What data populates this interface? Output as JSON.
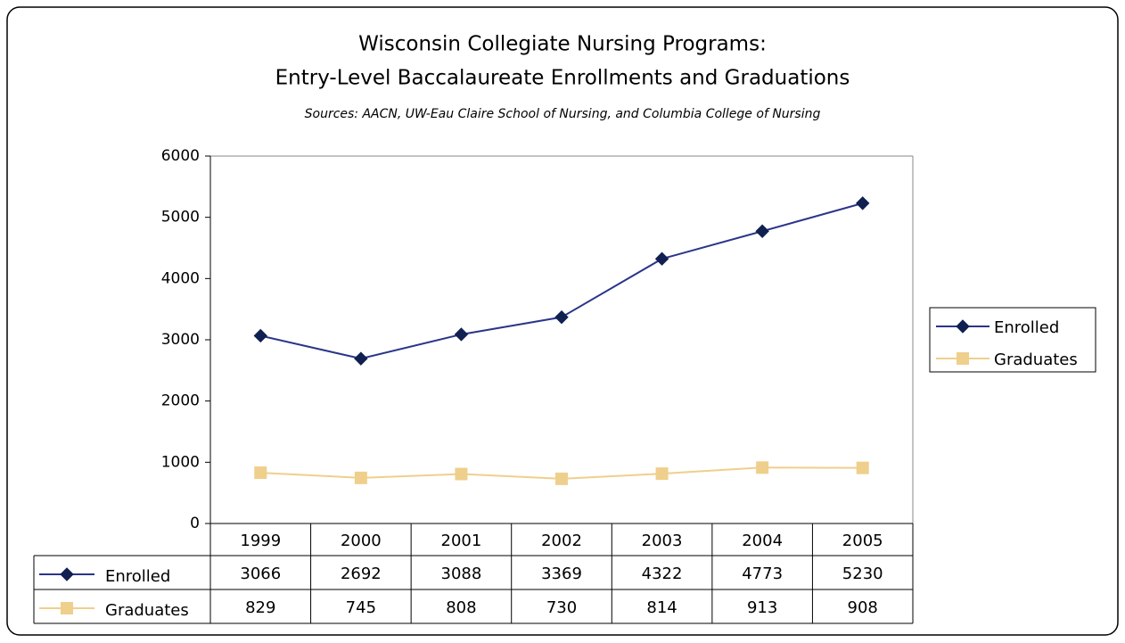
{
  "chart_data": {
    "type": "line",
    "title": [
      "Wisconsin Collegiate Nursing Programs:",
      "Entry-Level Baccalaureate Enrollments and Graduations"
    ],
    "subtitle": "Sources:  AACN, UW-Eau Claire School of Nursing, and Columbia College of Nursing",
    "categories": [
      "1999",
      "2000",
      "2001",
      "2002",
      "2003",
      "2004",
      "2005"
    ],
    "series": [
      {
        "name": "Enrolled",
        "color": "#2b3589",
        "marker": "diamond",
        "values": [
          3066,
          2692,
          3088,
          3369,
          4322,
          4773,
          5230
        ]
      },
      {
        "name": "Graduates",
        "color": "#efcf8c",
        "marker": "square",
        "values": [
          829,
          745,
          808,
          730,
          814,
          913,
          908
        ]
      }
    ],
    "ylim": [
      0,
      6000
    ],
    "yticks": [
      0,
      1000,
      2000,
      3000,
      4000,
      5000,
      6000
    ],
    "legend": "right",
    "data_table": true
  }
}
